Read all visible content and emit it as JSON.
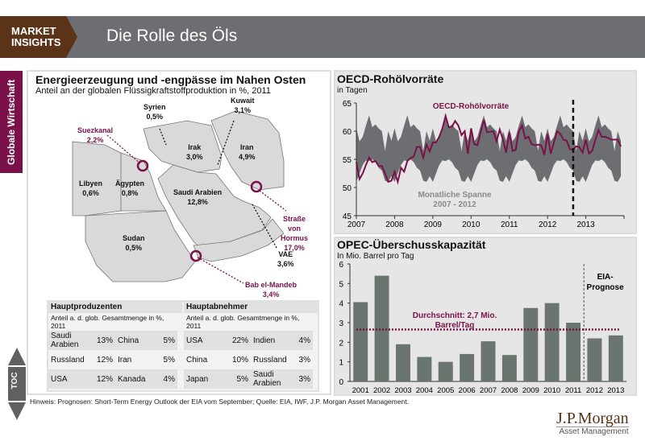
{
  "header": {
    "brand_line1": "MARKET",
    "brand_line2": "INSIGHTS",
    "title": "Die Rolle des Öls"
  },
  "sidebar": {
    "label": "Globale Wirtschaft",
    "toc": "TOC"
  },
  "map_panel": {
    "title": "Energieerzeugung und -engpässe im Nahen Osten",
    "subtitle": "Anteil an der globalen Flüssigkraftstoffproduktion in %, 2011",
    "countries": [
      {
        "name": "Syrien",
        "value": "0,5%"
      },
      {
        "name": "Kuwait",
        "value": "3,1%"
      },
      {
        "name": "Irak",
        "value": "3,0%"
      },
      {
        "name": "Iran",
        "value": "4,9%"
      },
      {
        "name": "Libyen",
        "value": "0,6%"
      },
      {
        "name": "Ägypten",
        "value": "0,8%"
      },
      {
        "name": "Saudi Arabien",
        "value": "12,8%"
      },
      {
        "name": "Sudan",
        "value": "0,5%"
      },
      {
        "name": "VAE",
        "value": "3,6%"
      }
    ],
    "chokepoints": [
      {
        "name": "Suezkanal",
        "value": "2,2%"
      },
      {
        "name": "Straße von Hormus",
        "value": "17,0%"
      },
      {
        "name": "Bab el-Mandeb",
        "value": "3,4%"
      }
    ]
  },
  "table": {
    "producers": {
      "title": "Hauptproduzenten",
      "note": "Anteil a. d. glob. Gesamtmenge in %, 2011",
      "rows": [
        [
          "Saudi Arabien",
          "13%",
          "China",
          "5%"
        ],
        [
          "Russland",
          "12%",
          "Iran",
          "5%"
        ],
        [
          "USA",
          "12%",
          "Kanada",
          "4%"
        ]
      ]
    },
    "consumers": {
      "title": "Hauptabnehmer",
      "note": "Anteil a. d. glob. Gesamtmenge in %, 2011",
      "rows": [
        [
          "USA",
          "22%",
          "Indien",
          "4%"
        ],
        [
          "China",
          "10%",
          "Russland",
          "3%"
        ],
        [
          "Japan",
          "5%",
          "Saudi Arabien",
          "3%"
        ]
      ]
    }
  },
  "footnote": "Hinweis: Prognosen: Short-Term Energy Outlook der EIA vom September; Quelle: EIA, IWF, J.P. Morgan Asset Management.",
  "logo": {
    "name": "J.P.Morgan",
    "sub": "Asset Management"
  },
  "colors": {
    "brand": "#5a3319",
    "accent": "#7b1149",
    "bar": "#6b7570",
    "band": "#6d6e71"
  },
  "chart_data": [
    {
      "type": "line",
      "title": "OECD-Rohölvorräte",
      "subtitle": "in Tagen",
      "ylim": [
        45,
        65
      ],
      "yticks": [
        45,
        50,
        55,
        60,
        65
      ],
      "xticks": [
        "2007",
        "2008",
        "2009",
        "2010",
        "2011",
        "2012",
        "2013"
      ],
      "x_start": 2007,
      "x_end": 2014,
      "series_label": "OECD-Rohölvorräte",
      "band_label_1": "Monatliche Spanne",
      "band_label_2": "2007 - 2012",
      "forecast_marker": 2012.67,
      "band_max_monthly": [
        60.5,
        58.2,
        59,
        61,
        62.8,
        60.7,
        61.2,
        60.5,
        60,
        56.5,
        60,
        58.3
      ],
      "band_min_monthly": [
        51,
        52.5,
        54,
        54.8,
        54.7,
        55,
        54.5,
        53.5,
        53,
        51.2,
        51,
        52
      ],
      "values": [
        54.5,
        51.5,
        52.5,
        54,
        55.3,
        54.5,
        54.7,
        53.8,
        53.8,
        52.5,
        51,
        51.2,
        52.8,
        51,
        53.5,
        52.8,
        54.7,
        55.2,
        55.5,
        57.2,
        57.2,
        55.3,
        57.6,
        56.4,
        58,
        58,
        59,
        60.5,
        62.7,
        60.7,
        60.8,
        61.8,
        61,
        59.3,
        60,
        56,
        60.5,
        57.7,
        57.5,
        59.8,
        62,
        59.8,
        59.9,
        60,
        58.2,
        60.3,
        58.5,
        56.2,
        59.8,
        56.5,
        56.7,
        60,
        61,
        58.7,
        59,
        57.7,
        57.5,
        57.6,
        57.5,
        55.8,
        59.5,
        56,
        58,
        60,
        59.5,
        58.5,
        58.3,
        56.8,
        56.7,
        57.3,
        57.2,
        56.2,
        58.5,
        56,
        56.5,
        58.5,
        60.2,
        59,
        59,
        58.8,
        58.5,
        58.5,
        58.5,
        57.3
      ]
    },
    {
      "type": "bar",
      "title": "OPEC-Überschusskapazität",
      "subtitle": "In Mio. Barrel pro Tag",
      "ylim": [
        0,
        6
      ],
      "yticks": [
        0,
        1,
        2,
        3,
        4,
        5,
        6
      ],
      "categories": [
        "2001",
        "2002",
        "2003",
        "2004",
        "2005",
        "2006",
        "2007",
        "2008",
        "2009",
        "2010",
        "2011",
        "2012",
        "2013"
      ],
      "values": [
        4.05,
        5.4,
        1.9,
        1.25,
        1.0,
        1.4,
        2.05,
        1.35,
        3.75,
        4.0,
        3.0,
        2.2,
        2.35
      ],
      "average": 2.65,
      "average_label_1": "Durchschnitt: 2,7 Mio.",
      "average_label_2": "Barrel/Tag",
      "forecast_label_1": "EIA-",
      "forecast_label_2": "Prognose",
      "forecast_from": "2012"
    }
  ]
}
